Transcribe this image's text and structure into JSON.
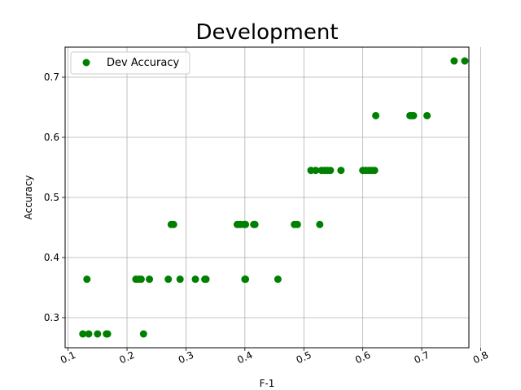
{
  "chart_data": {
    "type": "scatter",
    "title": "Development",
    "xlabel": "F-1",
    "ylabel": "Accuracy",
    "xlim": [
      0.095,
      0.78
    ],
    "ylim": [
      0.25,
      0.75
    ],
    "xticks": [
      0.1,
      0.2,
      0.3,
      0.4,
      0.5,
      0.6,
      0.7,
      0.8
    ],
    "xtick_labels": [
      "0.1",
      "0.2",
      "0.3",
      "0.4",
      "0.5",
      "0.6",
      "0.7",
      "0.8"
    ],
    "yticks": [
      0.3,
      0.4,
      0.5,
      0.6,
      0.7
    ],
    "ytick_labels": [
      "0.3",
      "0.4",
      "0.5",
      "0.6",
      "0.7"
    ],
    "grid": true,
    "legend_position": "top-left",
    "colors": {
      "marker": "#008000",
      "grid": "#b0b0b0",
      "frame": "#000000"
    },
    "series": [
      {
        "name": "Dev Accuracy",
        "marker": "circle",
        "x": [
          0.125,
          0.135,
          0.15,
          0.165,
          0.167,
          0.228,
          0.132,
          0.215,
          0.22,
          0.224,
          0.238,
          0.27,
          0.29,
          0.316,
          0.332,
          0.334,
          0.4,
          0.401,
          0.456,
          0.275,
          0.279,
          0.387,
          0.392,
          0.398,
          0.401,
          0.415,
          0.417,
          0.484,
          0.489,
          0.527,
          0.512,
          0.52,
          0.53,
          0.535,
          0.54,
          0.545,
          0.563,
          0.6,
          0.605,
          0.61,
          0.615,
          0.62,
          0.622,
          0.68,
          0.683,
          0.686,
          0.709,
          0.755,
          0.773
        ],
        "y": [
          0.273,
          0.273,
          0.273,
          0.273,
          0.273,
          0.273,
          0.364,
          0.364,
          0.364,
          0.364,
          0.364,
          0.364,
          0.364,
          0.364,
          0.364,
          0.364,
          0.364,
          0.364,
          0.364,
          0.455,
          0.455,
          0.455,
          0.455,
          0.455,
          0.455,
          0.455,
          0.455,
          0.455,
          0.455,
          0.455,
          0.545,
          0.545,
          0.545,
          0.545,
          0.545,
          0.545,
          0.545,
          0.545,
          0.545,
          0.545,
          0.545,
          0.545,
          0.636,
          0.636,
          0.636,
          0.636,
          0.636,
          0.727,
          0.727
        ]
      }
    ]
  }
}
